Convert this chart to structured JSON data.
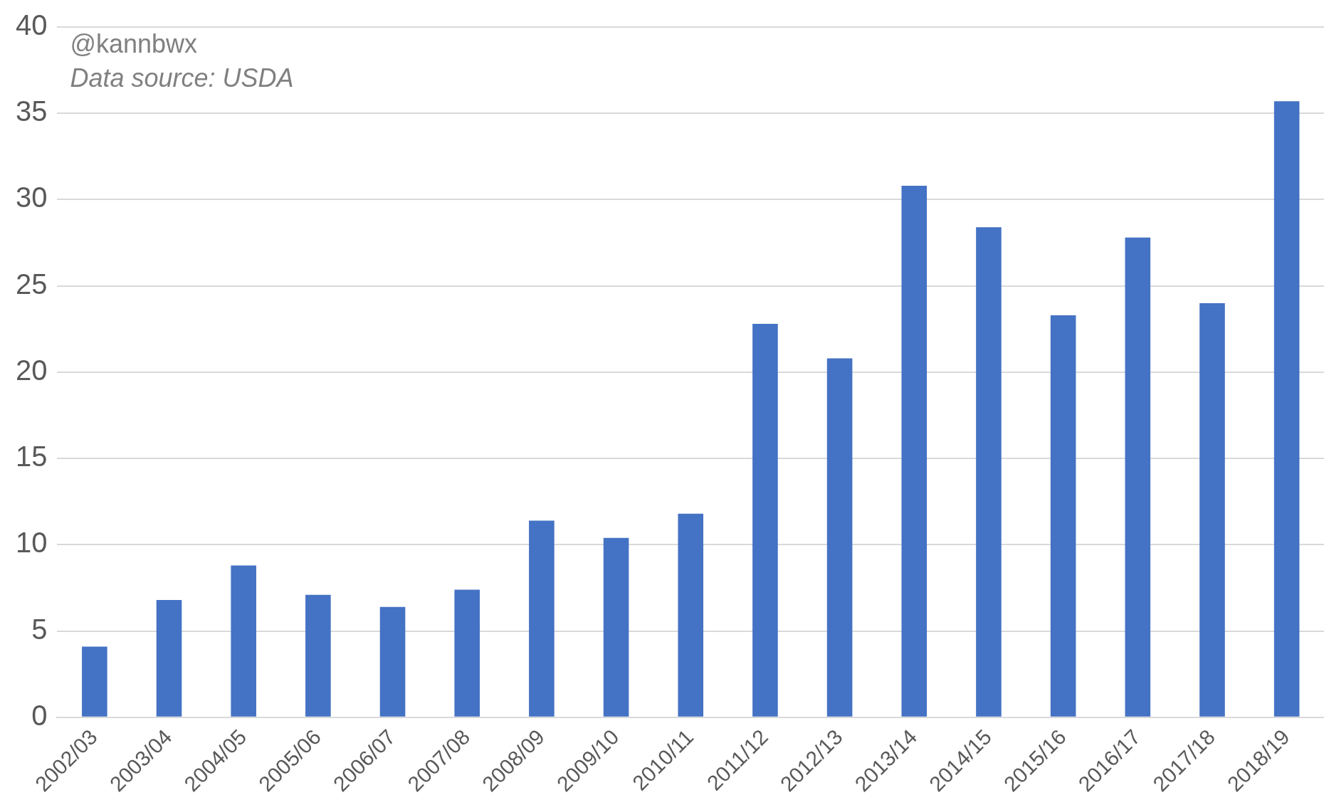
{
  "chart_data": {
    "type": "bar",
    "categories": [
      "2002/03",
      "2003/04",
      "2004/05",
      "2005/06",
      "2006/07",
      "2007/08",
      "2008/09",
      "2009/10",
      "2010/11",
      "2011/12",
      "2012/13",
      "2013/14",
      "2014/15",
      "2015/16",
      "2016/17",
      "2017/18",
      "2018/19"
    ],
    "values": [
      4.1,
      6.8,
      8.8,
      7.1,
      6.4,
      7.4,
      11.4,
      10.4,
      11.8,
      22.8,
      20.8,
      30.8,
      28.4,
      23.3,
      27.8,
      24.0,
      35.7
    ],
    "color": "#4472c4",
    "ylim": [
      0,
      40
    ],
    "yticks": [
      0,
      5,
      10,
      15,
      20,
      25,
      30,
      35,
      40
    ],
    "grid": "y",
    "annotations": [
      "@kannbwx",
      "Data source: USDA"
    ]
  }
}
